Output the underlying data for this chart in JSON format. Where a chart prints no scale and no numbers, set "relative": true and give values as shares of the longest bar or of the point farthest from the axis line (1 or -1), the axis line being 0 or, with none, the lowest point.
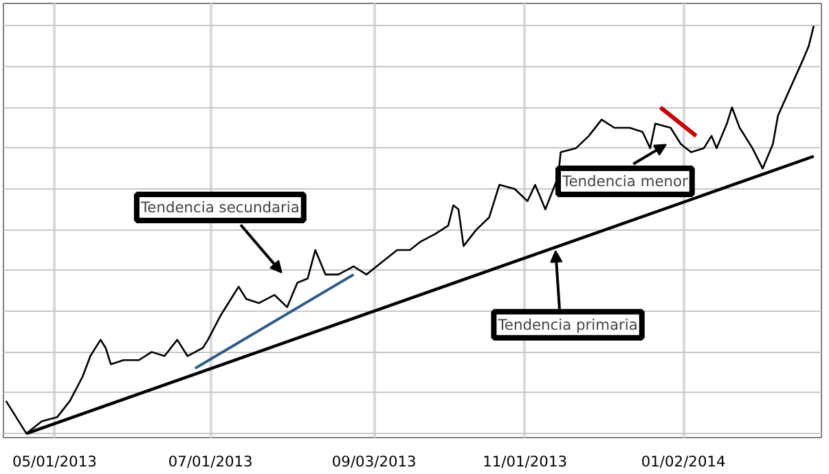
{
  "chart_data": {
    "type": "line",
    "relative": true,
    "grid": true,
    "tick_labels": "x",
    "xlim": [
      "2013-04-11",
      "2014-02-25"
    ],
    "xticks": [
      {
        "value": "2013-05-01",
        "label": "05/01/2013"
      },
      {
        "value": "2013-07-01",
        "label": "07/01/2013"
      },
      {
        "value": "2013-09-03",
        "label": "09/03/2013"
      },
      {
        "value": "2013-11-01",
        "label": "11/01/2013"
      },
      {
        "value": "2014-01-02",
        "label": "01/02/2014"
      }
    ],
    "series": [
      {
        "color": "#000000",
        "x": [
          "2013-04-12",
          "2013-04-16",
          "2013-04-20",
          "2013-04-26",
          "2013-05-02",
          "2013-05-07",
          "2013-05-12",
          "2013-05-15",
          "2013-05-19",
          "2013-05-21",
          "2013-05-23",
          "2013-05-28",
          "2013-06-03",
          "2013-06-08",
          "2013-06-13",
          "2013-06-18",
          "2013-06-22",
          "2013-06-28",
          "2013-06-30",
          "2013-07-05",
          "2013-07-10",
          "2013-07-12",
          "2013-07-15",
          "2013-07-20",
          "2013-07-26",
          "2013-07-31",
          "2013-08-04",
          "2013-08-08",
          "2013-08-11",
          "2013-08-15",
          "2013-08-20",
          "2013-08-26",
          "2013-08-31",
          "2013-09-06",
          "2013-09-12",
          "2013-09-17",
          "2013-09-21",
          "2013-09-27",
          "2013-10-02",
          "2013-10-04",
          "2013-10-06",
          "2013-10-08",
          "2013-10-13",
          "2013-10-18",
          "2013-10-22",
          "2013-10-28",
          "2013-11-02",
          "2013-11-05",
          "2013-11-09",
          "2013-11-14",
          "2013-11-15",
          "2013-11-21",
          "2013-11-26",
          "2013-12-01",
          "2013-12-06",
          "2013-12-12",
          "2013-12-17",
          "2013-12-20",
          "2013-12-22",
          "2013-12-28",
          "2014-01-01",
          "2014-01-05",
          "2014-01-10",
          "2014-01-13",
          "2014-01-15",
          "2014-01-19",
          "2014-01-21",
          "2014-01-24",
          "2014-01-29",
          "2014-02-02",
          "2014-02-06",
          "2014-02-08",
          "2014-02-13",
          "2014-02-18",
          "2014-02-20",
          "2014-02-22"
        ],
        "values": [
          0.08,
          0.04,
          0,
          0.03,
          0.04,
          0.08,
          0.14,
          0.19,
          0.23,
          0.21,
          0.17,
          0.18,
          0.18,
          0.2,
          0.19,
          0.23,
          0.19,
          0.21,
          0.23,
          0.29,
          0.34,
          0.36,
          0.33,
          0.32,
          0.34,
          0.31,
          0.37,
          0.38,
          0.45,
          0.39,
          0.39,
          0.41,
          0.39,
          0.42,
          0.45,
          0.45,
          0.47,
          0.49,
          0.51,
          0.56,
          0.55,
          0.46,
          0.5,
          0.53,
          0.61,
          0.6,
          0.57,
          0.61,
          0.55,
          0.63,
          0.69,
          0.7,
          0.73,
          0.77,
          0.75,
          0.75,
          0.74,
          0.7,
          0.76,
          0.75,
          0.71,
          0.69,
          0.7,
          0.73,
          0.7,
          0.76,
          0.8,
          0.75,
          0.7,
          0.65,
          0.71,
          0.78,
          0.85,
          0.92,
          0.95,
          1
        ]
      },
      {
        "color": "#000000",
        "x": [
          "2013-04-20",
          "2014-02-22"
        ],
        "values": [
          0,
          0.68
        ]
      },
      {
        "color": "#2e5a8c",
        "x": [
          "2013-06-25",
          "2013-08-26"
        ],
        "values": [
          0.16,
          0.39
        ]
      },
      {
        "color": "#cc0000",
        "x": [
          "2013-12-24",
          "2014-01-07"
        ],
        "values": [
          0.8,
          0.73
        ]
      }
    ],
    "annotations": [
      "Tendencia secundaria",
      "Tendencia menor",
      "Tendencia primaria"
    ]
  }
}
